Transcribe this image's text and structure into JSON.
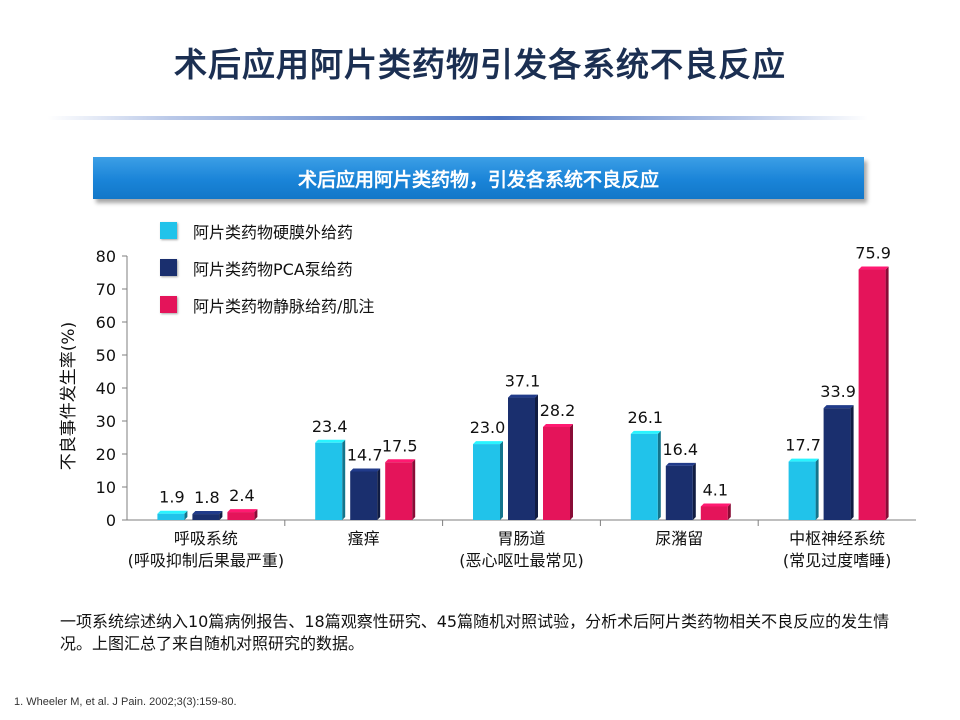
{
  "slide": {
    "title": "术后应用阿片类药物引发各系统不良反应",
    "note": "一项系统综述纳入10篇病例报告、18篇观察性研究、45篇随机对照试验，分析术后阿片类药物相关不良反应的发生情况。上图汇总了来自随机对照研究的数据。",
    "reference": "1.   Wheeler M, et al. J Pain. 2002;3(3):159-80."
  },
  "colors": {
    "epidural": "#21c3ea",
    "pca": "#1a2f6e",
    "iv_im": "#e4145a",
    "banner": "#1a84d8",
    "title": "#1b2f52"
  },
  "chart_data": {
    "type": "bar",
    "title": "术后应用阿片类药物，引发各系统不良反应",
    "ylabel": "不良事件发生率(%)",
    "xlabel": "",
    "ylim": [
      0,
      80
    ],
    "yticks": [
      0,
      10,
      20,
      30,
      40,
      50,
      60,
      70,
      80
    ],
    "grid": false,
    "legend_position": "top-left",
    "categories": [
      {
        "line1": "呼吸系统",
        "line2": "(呼吸抑制后果最严重)"
      },
      {
        "line1": "瘙痒",
        "line2": ""
      },
      {
        "line1": "胃肠道",
        "line2": "(恶心呕吐最常见)"
      },
      {
        "line1": "尿潴留",
        "line2": ""
      },
      {
        "line1": "中枢神经系统",
        "line2": "(常见过度嗜睡)"
      }
    ],
    "series": [
      {
        "name": "阿片类药物硬膜外给药",
        "color": "#21c3ea",
        "values": [
          1.9,
          23.4,
          23.0,
          26.1,
          17.7
        ],
        "labels": [
          "1.9",
          "23.4",
          "23.0",
          "26.1",
          "17.7"
        ]
      },
      {
        "name": "阿片类药物PCA泵给药",
        "color": "#1a2f6e",
        "values": [
          1.8,
          14.7,
          37.1,
          16.4,
          33.9
        ],
        "labels": [
          "1.8",
          "14.7",
          "37.1",
          "16.4",
          "33.9"
        ]
      },
      {
        "name": "阿片类药物静脉给药/肌注",
        "color": "#e4145a",
        "values": [
          2.4,
          17.5,
          28.2,
          4.1,
          75.9
        ],
        "labels": [
          "2.4",
          "17.5",
          "28.2",
          "4.1",
          "75.9"
        ]
      }
    ]
  }
}
